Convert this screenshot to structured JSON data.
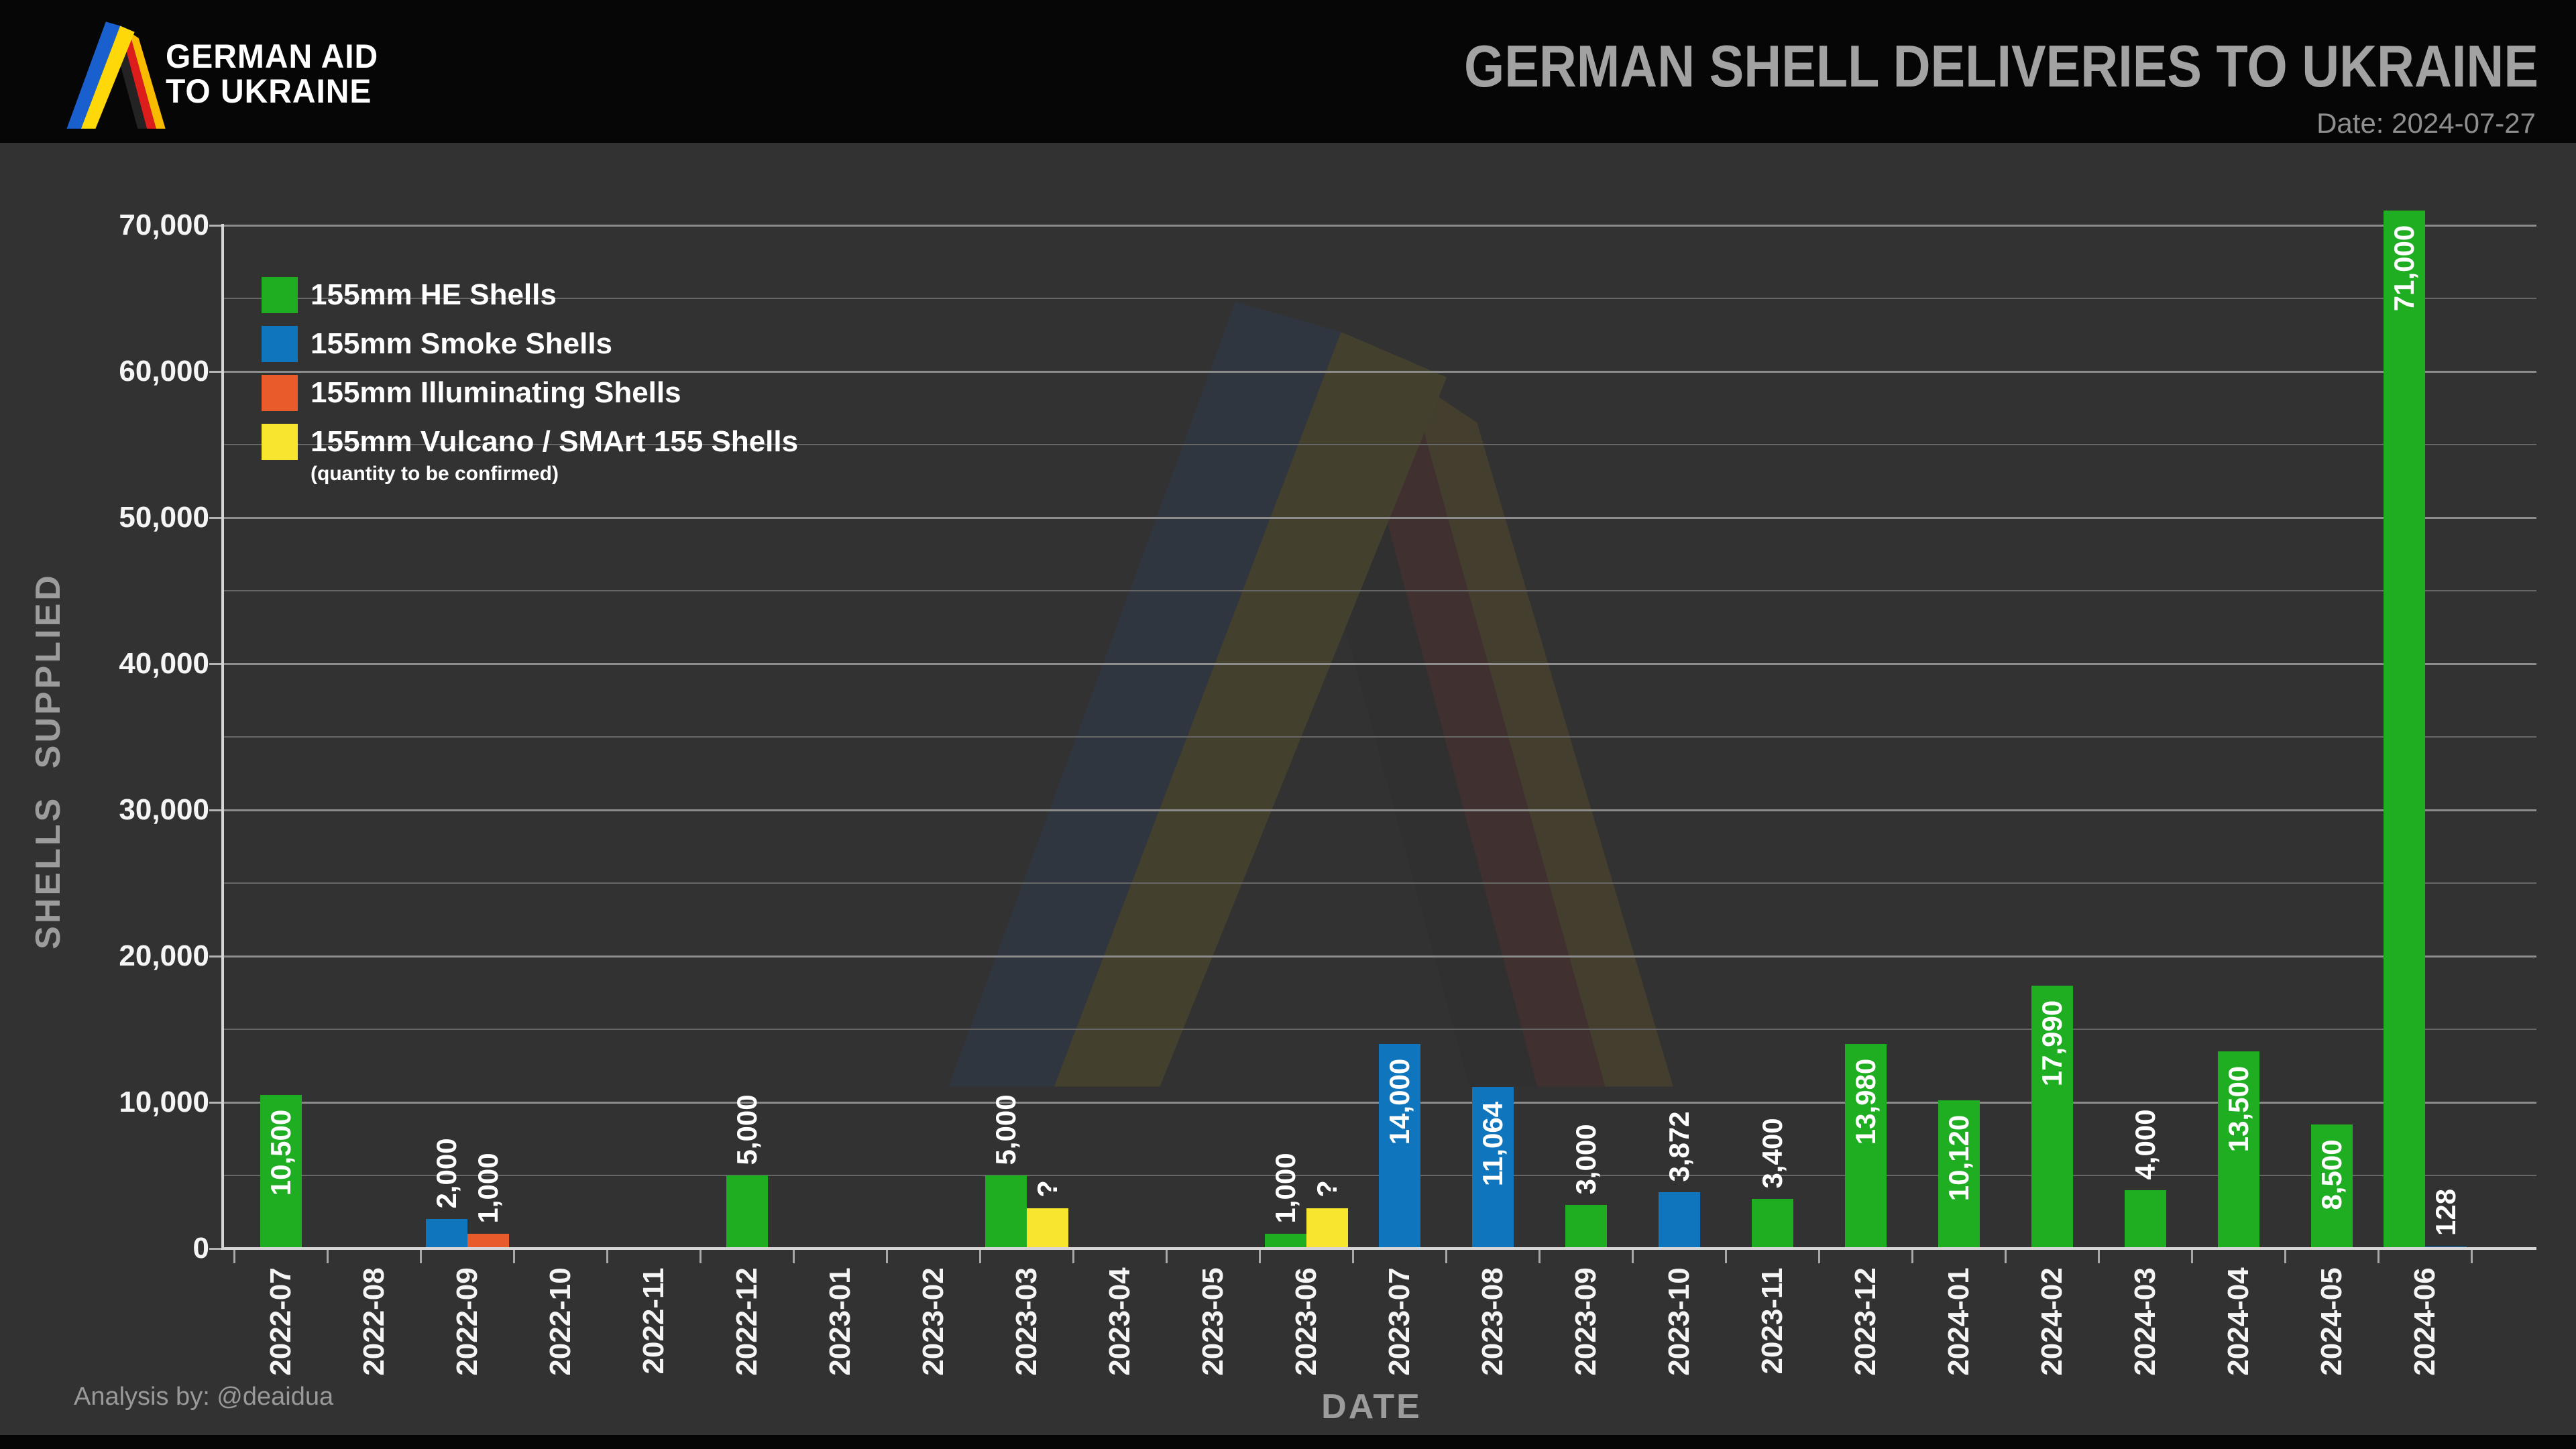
{
  "header": {
    "brand_line1": "GERMAN AID",
    "brand_line2": "TO UKRAINE",
    "title": "GERMAN SHELL DELIVERIES TO UKRAINE",
    "date": "Date: 2024-07-27"
  },
  "footer": {
    "credit": "Analysis by: @deaidua"
  },
  "colors": {
    "bg": "#323232",
    "band": "#060606",
    "gridmaj": "#8c8c8c",
    "gridmin": "#666666",
    "axis": "#d6d6d6",
    "ua_blue": "#1a5fce",
    "ua_yellow": "#ffd80a",
    "de_black": "#232323",
    "de_red": "#dd1c1c",
    "de_gold": "#f8bb00"
  },
  "chart_data": {
    "type": "bar",
    "title": "GERMAN SHELL DELIVERIES TO UKRAINE",
    "xlabel": "DATE",
    "ylabel": "SHELLS SUPPLIED",
    "ylim": [
      0,
      73000
    ],
    "ytick_step": 5000,
    "ytick_label_step": 10000,
    "ytick_labels": [
      "0",
      "10,000",
      "20,000",
      "30,000",
      "40,000",
      "50,000",
      "60,000",
      "70,000"
    ],
    "grid": true,
    "legend_position": "upper-left",
    "series": [
      {
        "key": "he",
        "name": "155mm HE Shells",
        "color": "#1fad22"
      },
      {
        "key": "smoke",
        "name": "155mm Smoke Shells",
        "color": "#0f76bd"
      },
      {
        "key": "illum",
        "name": "155mm Illuminating Shells",
        "color": "#ea5b2b"
      },
      {
        "key": "vulcano",
        "name": "155mm Vulcano / SMArt 155 Shells",
        "color": "#f7e52e",
        "note": "(quantity to be confirmed)"
      }
    ],
    "categories": [
      "2022-07",
      "2022-08",
      "2022-09",
      "2022-10",
      "2022-11",
      "2022-12",
      "2023-01",
      "2023-02",
      "2023-03",
      "2023-04",
      "2023-05",
      "2023-06",
      "2023-07",
      "2023-08",
      "2023-09",
      "2023-10",
      "2023-11",
      "2023-12",
      "2024-01",
      "2024-02",
      "2024-03",
      "2024-04",
      "2024-05",
      "2024-06"
    ],
    "bars": [
      {
        "category": "2022-07",
        "series": "he",
        "value": 10500,
        "label": "10,500",
        "label_inside": true
      },
      {
        "category": "2022-09",
        "series": "smoke",
        "value": 2000,
        "label": "2,000",
        "label_inside": false
      },
      {
        "category": "2022-09",
        "series": "illum",
        "value": 1000,
        "label": "1,000",
        "label_inside": false
      },
      {
        "category": "2022-12",
        "series": "he",
        "value": 5000,
        "label": "5,000",
        "label_inside": false
      },
      {
        "category": "2023-03",
        "series": "he",
        "value": 5000,
        "label": "5,000",
        "label_inside": false
      },
      {
        "category": "2023-03",
        "series": "vulcano",
        "value": null,
        "estimated_value": 2750,
        "label": "?",
        "label_inside": false
      },
      {
        "category": "2023-06",
        "series": "he",
        "value": 1000,
        "label": "1,000",
        "label_inside": false
      },
      {
        "category": "2023-06",
        "series": "vulcano",
        "value": null,
        "estimated_value": 2750,
        "label": "?",
        "label_inside": false
      },
      {
        "category": "2023-07",
        "series": "smoke",
        "value": 14000,
        "label": "14,000",
        "label_inside": true
      },
      {
        "category": "2023-08",
        "series": "smoke",
        "value": 11064,
        "label": "11,064",
        "label_inside": true
      },
      {
        "category": "2023-09",
        "series": "he",
        "value": 3000,
        "label": "3,000",
        "label_inside": false
      },
      {
        "category": "2023-10",
        "series": "smoke",
        "value": 3872,
        "label": "3,872",
        "label_inside": false
      },
      {
        "category": "2023-11",
        "series": "he",
        "value": 3400,
        "label": "3,400",
        "label_inside": false
      },
      {
        "category": "2023-12",
        "series": "he",
        "value": 13980,
        "label": "13,980",
        "label_inside": true
      },
      {
        "category": "2024-01",
        "series": "he",
        "value": 10120,
        "label": "10,120",
        "label_inside": true
      },
      {
        "category": "2024-02",
        "series": "he",
        "value": 17990,
        "label": "17,990",
        "label_inside": true
      },
      {
        "category": "2024-03",
        "series": "he",
        "value": 4000,
        "label": "4,000",
        "label_inside": false
      },
      {
        "category": "2024-04",
        "series": "he",
        "value": 13500,
        "label": "13,500",
        "label_inside": true
      },
      {
        "category": "2024-05",
        "series": "he",
        "value": 8500,
        "label": "8,500",
        "label_inside": true
      },
      {
        "category": "2024-06",
        "series": "he",
        "value": 71000,
        "label": "71,000",
        "label_inside": true
      },
      {
        "category": "2024-06",
        "series": "smoke",
        "value": 128,
        "label": "128",
        "label_inside": false
      }
    ]
  }
}
